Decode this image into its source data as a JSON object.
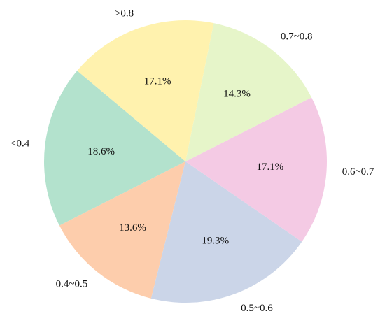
{
  "chart_data": {
    "type": "pie",
    "title": "",
    "categories": [
      "<0.4",
      "0.4~0.5",
      "0.5~0.6",
      "0.6~0.7",
      "0.7~0.8",
      ">0.8"
    ],
    "values": [
      18.6,
      13.6,
      19.3,
      17.1,
      14.3,
      17.1
    ],
    "value_labels": [
      "18.6%",
      "13.6%",
      "19.3%",
      "17.1%",
      "14.3%",
      "17.1%"
    ],
    "colors": [
      "#b3e2cd",
      "#fdcdac",
      "#cbd5e8",
      "#f4cae4",
      "#e6f5c9",
      "#fff2ae"
    ],
    "start_angle_deg": 140,
    "direction": "counterclockwise",
    "legend": "none"
  }
}
